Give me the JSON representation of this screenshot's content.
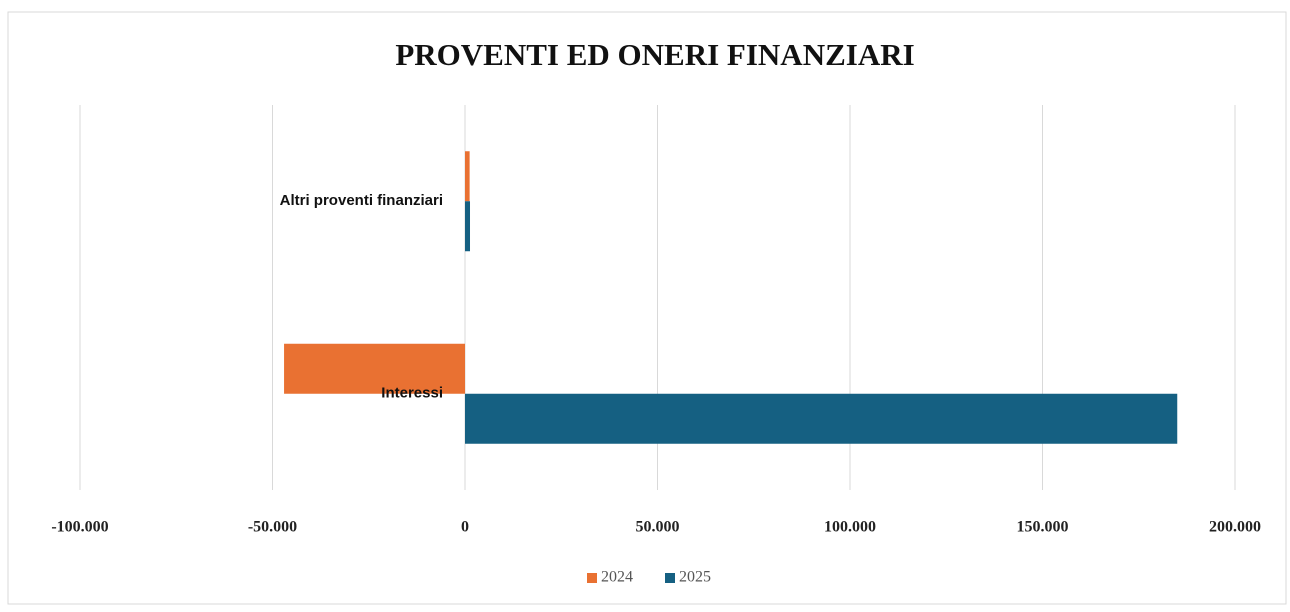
{
  "chart_data": {
    "type": "bar",
    "orientation": "horizontal",
    "title": "PROVENTI ED ONERI FINANZIARI",
    "categories": [
      "Altri proventi finanziari",
      "Interessi"
    ],
    "series": [
      {
        "name": "2024",
        "color": "#e97132",
        "values": [
          1200,
          -47000
        ]
      },
      {
        "name": "2025",
        "color": "#156082",
        "values": [
          1300,
          185000
        ]
      }
    ],
    "xlim": [
      -100000,
      200000
    ],
    "xticks": [
      {
        "value": -100000,
        "label": "-100.000"
      },
      {
        "value": -50000,
        "label": "-50.000"
      },
      0,
      {
        "value": 50000,
        "label": "50.000"
      },
      {
        "value": 100000,
        "label": "100.000"
      },
      {
        "value": 150000,
        "label": "150.000"
      },
      {
        "value": 200000,
        "label": "200.000"
      }
    ],
    "grid": true,
    "legend": "bottom"
  }
}
